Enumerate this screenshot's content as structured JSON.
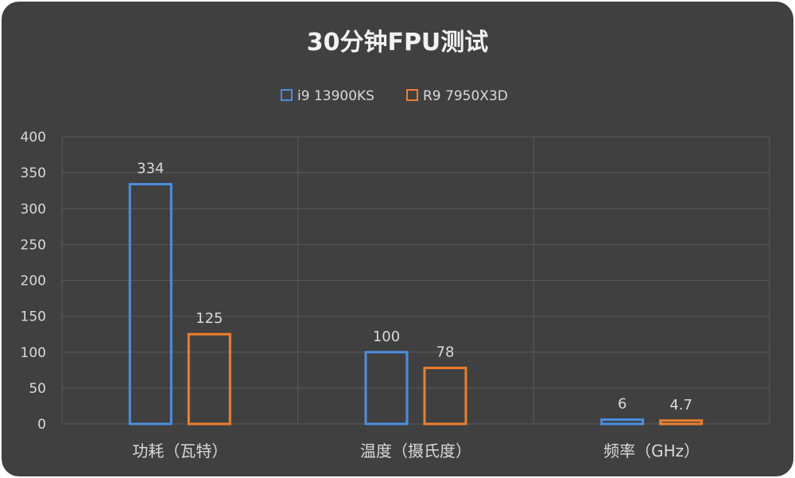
{
  "chart_data": {
    "type": "bar",
    "title": "30分钟FPU测试",
    "categories": [
      "功耗（瓦特）",
      "温度（摄氏度）",
      "频率（GHz）"
    ],
    "series": [
      {
        "name": "i9 13900KS",
        "values": [
          334,
          100,
          6
        ],
        "labels": [
          "334",
          "100",
          "6"
        ],
        "color": "#4a8ee0"
      },
      {
        "name": "R9 7950X3D",
        "values": [
          125,
          78,
          4.7
        ],
        "labels": [
          "125",
          "78",
          "4.7"
        ],
        "color": "#ee7e2d"
      }
    ],
    "ylim": [
      0,
      400
    ],
    "yticks": [
      "0",
      "50",
      "100",
      "150",
      "200",
      "250",
      "300",
      "350",
      "400"
    ],
    "grid": true,
    "legend": "top"
  }
}
